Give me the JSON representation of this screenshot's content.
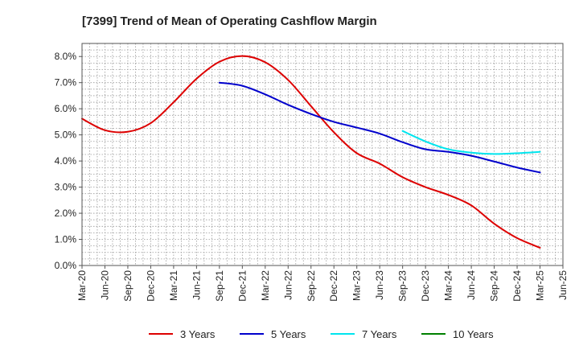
{
  "chart_data": {
    "type": "line",
    "title": "[7399]  Trend of Mean of Operating Cashflow Margin",
    "xlabel": "",
    "ylabel": "",
    "ylim": [
      0,
      8.5
    ],
    "y_ticks": [
      0,
      1,
      2,
      3,
      4,
      5,
      6,
      7,
      8
    ],
    "y_tick_labels": [
      "0.0%",
      "1.0%",
      "2.0%",
      "3.0%",
      "4.0%",
      "5.0%",
      "6.0%",
      "7.0%",
      "8.0%"
    ],
    "x_tick_labels": [
      "Mar-20",
      "Jun-20",
      "Sep-20",
      "Dec-20",
      "Mar-21",
      "Jun-21",
      "Sep-21",
      "Dec-21",
      "Mar-22",
      "Jun-22",
      "Sep-22",
      "Dec-22",
      "Mar-23",
      "Jun-23",
      "Sep-23",
      "Dec-23",
      "Mar-24",
      "Jun-24",
      "Sep-24",
      "Dec-24",
      "Mar-25",
      "Jun-25"
    ],
    "grid": true,
    "legend_position": "bottom",
    "series": [
      {
        "name": "3 Years",
        "color": "#dd0000",
        "x_index": [
          0,
          1,
          2,
          3,
          4,
          5,
          6,
          7,
          8,
          9,
          10,
          11,
          12,
          13,
          14,
          15,
          16,
          17,
          18,
          19,
          20
        ],
        "values": [
          5.62,
          5.18,
          5.12,
          5.45,
          6.25,
          7.15,
          7.8,
          8.02,
          7.78,
          7.1,
          6.1,
          5.1,
          4.3,
          3.9,
          3.38,
          3.0,
          2.7,
          2.3,
          1.6,
          1.05,
          0.68
        ]
      },
      {
        "name": "5 Years",
        "color": "#0000cc",
        "x_index": [
          6,
          7,
          8,
          9,
          10,
          11,
          12,
          13,
          14,
          15,
          16,
          17,
          18,
          19,
          20
        ],
        "values": [
          7.0,
          6.88,
          6.55,
          6.15,
          5.8,
          5.5,
          5.28,
          5.05,
          4.72,
          4.45,
          4.35,
          4.2,
          3.98,
          3.75,
          3.56
        ]
      },
      {
        "name": "7 Years",
        "color": "#00e5ee",
        "x_index": [
          14,
          15,
          16,
          17,
          18,
          19,
          20
        ],
        "values": [
          5.15,
          4.75,
          4.45,
          4.32,
          4.27,
          4.3,
          4.35
        ]
      },
      {
        "name": "10 Years",
        "color": "#008000",
        "x_index": [],
        "values": []
      }
    ]
  }
}
